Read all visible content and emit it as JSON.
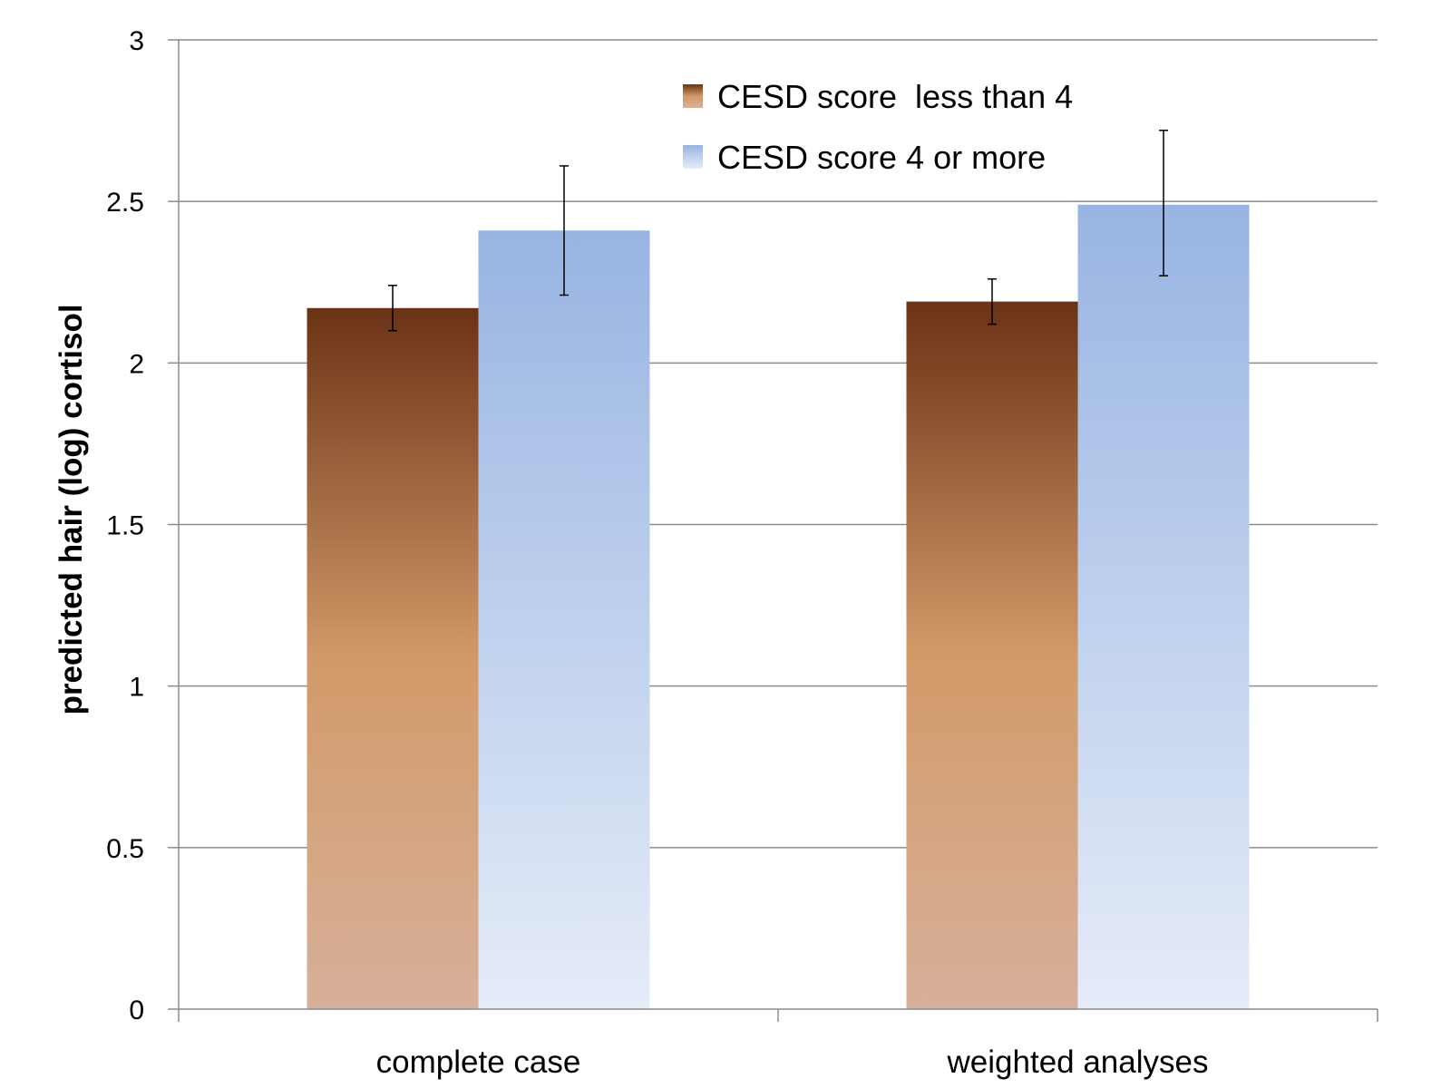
{
  "chart_data": {
    "type": "bar",
    "title": "",
    "xlabel": "",
    "ylabel": "predicted hair (log) cortisol",
    "ylim": [
      0,
      3
    ],
    "yticks": [
      "0",
      "0.5",
      "1",
      "1.5",
      "2",
      "2.5",
      "3"
    ],
    "categories": [
      "complete case",
      "weighted analyses"
    ],
    "series": [
      {
        "name": "CESD score  less than 4",
        "values": [
          2.17,
          2.19
        ],
        "error_low": [
          2.1,
          2.12
        ],
        "error_high": [
          2.24,
          2.26
        ],
        "color_top": "#6b3216",
        "color_mid": "#d29a68",
        "color_bottom": "#d7b09a"
      },
      {
        "name": "CESD score 4 or more",
        "values": [
          2.41,
          2.49
        ],
        "error_low": [
          2.21,
          2.27
        ],
        "error_high": [
          2.61,
          2.72
        ],
        "color_top": "#98b4e2",
        "color_mid": "#c3d3ee",
        "color_bottom": "#e6ecf8"
      }
    ],
    "grid": true,
    "legend_position": "top-center"
  }
}
